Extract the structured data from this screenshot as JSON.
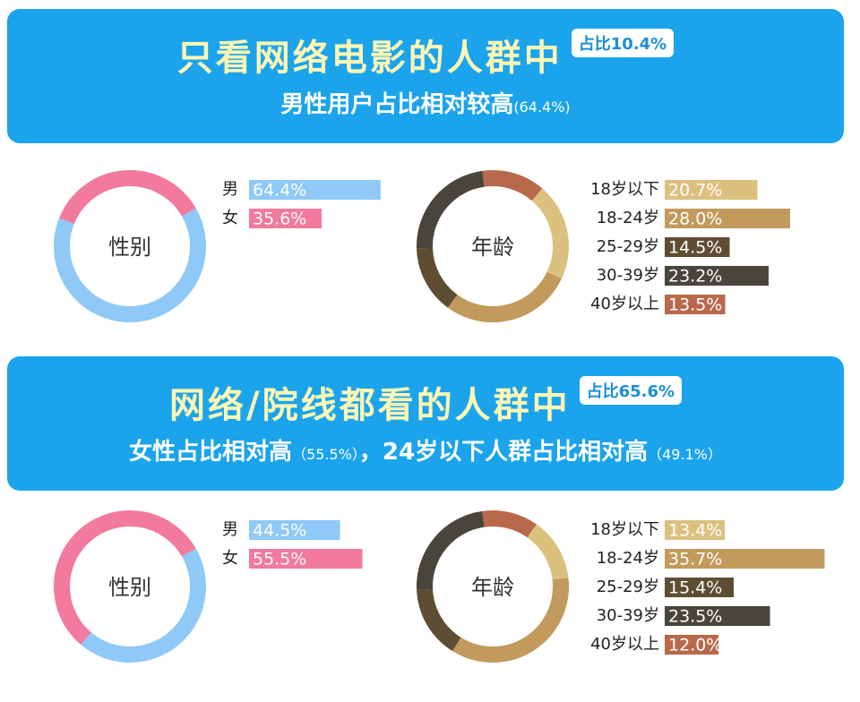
{
  "sections": [
    {
      "title": "只看网络电影的人群中",
      "badge": "占比10.4%",
      "subtitle": [
        "男性用户占比相对较高",
        "(64.4%)"
      ]
    },
    {
      "title": "网络/院线都看的人群中",
      "badge": "占比65.6%",
      "subtitle": [
        "女性占比相对高",
        "（55.5%）",
        "，24岁以下人群占比相对高",
        "（49.1%）"
      ]
    }
  ],
  "chart_data": [
    {
      "type": "donut",
      "center_label": "性别",
      "categories": [
        "男",
        "女"
      ],
      "values": [
        64.4,
        35.6
      ],
      "value_labels": [
        "64.4%",
        "35.6%"
      ],
      "colors": [
        "#8ec9f7",
        "#f27a9d"
      ]
    },
    {
      "type": "donut",
      "center_label": "年龄",
      "categories": [
        "18岁以下",
        "18-24岁",
        "25-29岁",
        "30-39岁",
        "40岁以上"
      ],
      "values": [
        20.7,
        28.0,
        14.5,
        23.2,
        13.5
      ],
      "value_labels": [
        "20.7%",
        "28.0%",
        "14.5%",
        "23.2%",
        "13.5%"
      ],
      "colors": [
        "#dcc07e",
        "#c29a5c",
        "#5e4d33",
        "#4a453c",
        "#b8694b"
      ]
    },
    {
      "type": "donut",
      "center_label": "性别",
      "categories": [
        "男",
        "女"
      ],
      "values": [
        44.5,
        55.5
      ],
      "value_labels": [
        "44.5%",
        "55.5%"
      ],
      "colors": [
        "#8ec9f7",
        "#f27a9d"
      ]
    },
    {
      "type": "donut",
      "center_label": "年龄",
      "categories": [
        "18岁以下",
        "18-24岁",
        "25-29岁",
        "30-39岁",
        "40岁以上"
      ],
      "values": [
        13.4,
        35.7,
        15.4,
        23.5,
        12.0
      ],
      "value_labels": [
        "13.4%",
        "35.7%",
        "15.4%",
        "23.5%",
        "12.0%"
      ],
      "colors": [
        "#dcc07e",
        "#c29a5c",
        "#5e4d33",
        "#4a453c",
        "#b8694b"
      ]
    }
  ]
}
